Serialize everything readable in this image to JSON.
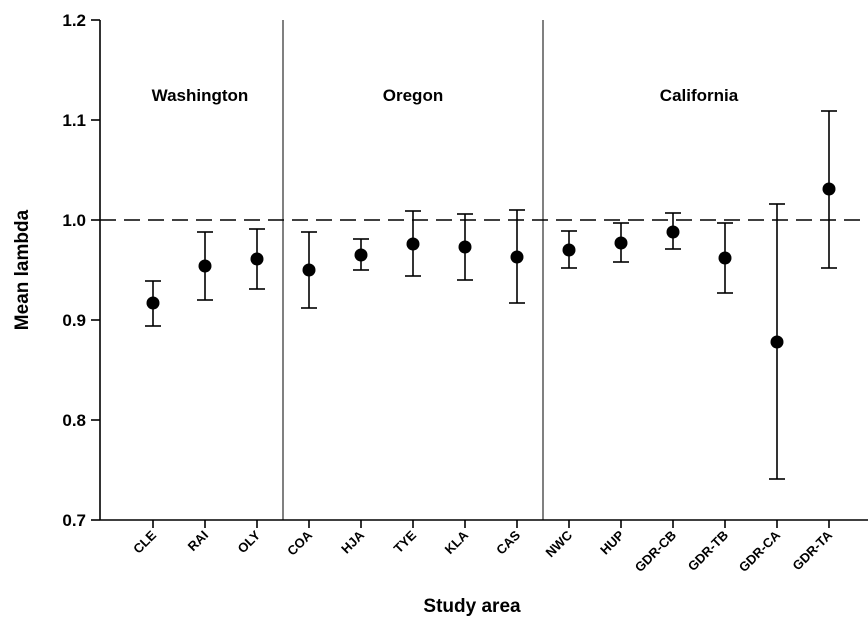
{
  "chart_data": {
    "type": "scatter",
    "title": "",
    "xlabel": "Study area",
    "ylabel": "Mean lambda",
    "ylim": [
      0.7,
      1.2
    ],
    "yticks": [
      "0.7",
      "0.8",
      "0.9",
      "1.0",
      "1.1",
      "1.2"
    ],
    "reference_line": 1.0,
    "grid": false,
    "categories": [
      "CLE",
      "RAI",
      "OLY",
      "COA",
      "HJA",
      "TYE",
      "KLA",
      "CAS",
      "NWC",
      "HUP",
      "GDR-CB",
      "GDR-TB",
      "GDR-CA",
      "GDR-TA"
    ],
    "regions": [
      {
        "label": "Washington",
        "start": 0,
        "end": 2
      },
      {
        "label": "Oregon",
        "start": 3,
        "end": 7
      },
      {
        "label": "California",
        "start": 8,
        "end": 13
      }
    ],
    "values": [
      0.917,
      0.954,
      0.961,
      0.95,
      0.965,
      0.976,
      0.973,
      0.963,
      0.97,
      0.977,
      0.988,
      0.962,
      0.878,
      1.031
    ],
    "lower": [
      0.894,
      0.92,
      0.931,
      0.912,
      0.95,
      0.944,
      0.94,
      0.917,
      0.952,
      0.958,
      0.971,
      0.927,
      0.741,
      0.952
    ],
    "upper": [
      0.939,
      0.988,
      0.991,
      0.988,
      0.981,
      1.009,
      1.006,
      1.01,
      0.989,
      0.997,
      1.007,
      0.997,
      1.016,
      1.109
    ]
  }
}
